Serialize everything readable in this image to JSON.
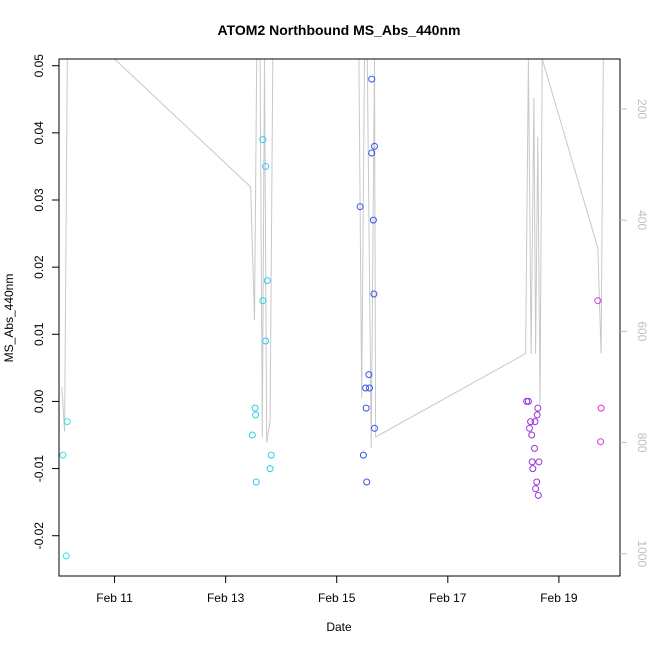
{
  "chart_data": {
    "type": "scatter",
    "title": "ATOM2 Northbound MS_Abs_440nm",
    "xlabel": "Date",
    "ylabel": "MS_Abs_440nm",
    "ylim": [
      -0.026,
      0.051
    ],
    "xlim": [
      10.0,
      20.1
    ],
    "x_unit": "days of February (day-of-month, fractional)",
    "x_ticks": [
      {
        "value": 11,
        "label": "Feb 11"
      },
      {
        "value": 13,
        "label": "Feb 13"
      },
      {
        "value": 15,
        "label": "Feb 15"
      },
      {
        "value": 17,
        "label": "Feb 17"
      },
      {
        "value": 19,
        "label": "Feb 19"
      }
    ],
    "y_ticks": [
      {
        "value": -0.02,
        "label": "-0.02"
      },
      {
        "value": -0.01,
        "label": "-0.01"
      },
      {
        "value": 0.0,
        "label": "0.00"
      },
      {
        "value": 0.01,
        "label": "0.01"
      },
      {
        "value": 0.02,
        "label": "0.02"
      },
      {
        "value": 0.03,
        "label": "0.03"
      },
      {
        "value": 0.04,
        "label": "0.04"
      },
      {
        "value": 0.05,
        "label": "0.05"
      }
    ],
    "secondary_axis": {
      "side": "right",
      "color": "#bfbfbf",
      "range": [
        1040,
        110
      ],
      "ticks": [
        {
          "value": 200,
          "label": "200"
        },
        {
          "value": 400,
          "label": "400"
        },
        {
          "value": 600,
          "label": "600"
        },
        {
          "value": 800,
          "label": "800"
        },
        {
          "value": 1000,
          "label": "1000"
        }
      ]
    },
    "series": [
      {
        "name": "cyan",
        "color": "#33e6e6",
        "points": [
          {
            "x": 10.07,
            "y": -0.008
          },
          {
            "x": 10.15,
            "y": -0.003
          },
          {
            "x": 10.13,
            "y": -0.023
          }
        ]
      },
      {
        "name": "light-blue",
        "color": "#33ccee",
        "points": [
          {
            "x": 13.48,
            "y": -0.005
          },
          {
            "x": 13.53,
            "y": -0.001
          },
          {
            "x": 13.54,
            "y": -0.002
          },
          {
            "x": 13.55,
            "y": -0.012
          },
          {
            "x": 13.67,
            "y": 0.039
          },
          {
            "x": 13.67,
            "y": 0.015
          },
          {
            "x": 13.72,
            "y": 0.035
          },
          {
            "x": 13.72,
            "y": 0.009
          },
          {
            "x": 13.75,
            "y": 0.018
          },
          {
            "x": 13.82,
            "y": -0.008
          },
          {
            "x": 13.8,
            "y": -0.01
          }
        ]
      },
      {
        "name": "blue",
        "color": "#3355ee",
        "points": [
          {
            "x": 15.42,
            "y": 0.029
          },
          {
            "x": 15.48,
            "y": -0.008
          },
          {
            "x": 15.52,
            "y": 0.002
          },
          {
            "x": 15.53,
            "y": -0.001
          },
          {
            "x": 15.54,
            "y": -0.012
          },
          {
            "x": 15.58,
            "y": 0.004
          },
          {
            "x": 15.59,
            "y": 0.002
          },
          {
            "x": 15.63,
            "y": 0.048
          },
          {
            "x": 15.63,
            "y": 0.037
          },
          {
            "x": 15.66,
            "y": 0.027
          },
          {
            "x": 15.68,
            "y": 0.038
          },
          {
            "x": 15.67,
            "y": 0.016
          },
          {
            "x": 15.68,
            "y": -0.004
          }
        ]
      },
      {
        "name": "purple",
        "color": "#9933dd",
        "points": [
          {
            "x": 18.42,
            "y": 0.0
          },
          {
            "x": 18.45,
            "y": 0.0
          },
          {
            "x": 18.47,
            "y": -0.004
          },
          {
            "x": 18.49,
            "y": -0.003
          },
          {
            "x": 18.51,
            "y": -0.005
          },
          {
            "x": 18.52,
            "y": -0.009
          },
          {
            "x": 18.53,
            "y": -0.01
          },
          {
            "x": 18.56,
            "y": -0.007
          },
          {
            "x": 18.57,
            "y": -0.003
          },
          {
            "x": 18.58,
            "y": -0.013
          },
          {
            "x": 18.6,
            "y": -0.012
          },
          {
            "x": 18.63,
            "y": -0.014
          },
          {
            "x": 18.61,
            "y": -0.002
          },
          {
            "x": 18.62,
            "y": -0.001
          },
          {
            "x": 18.64,
            "y": -0.009
          }
        ]
      },
      {
        "name": "magenta",
        "color": "#dd33dd",
        "points": [
          {
            "x": 19.7,
            "y": 0.015
          },
          {
            "x": 19.76,
            "y": -0.001
          },
          {
            "x": 19.75,
            "y": -0.006
          }
        ]
      }
    ],
    "depth_trace": {
      "name": "secondary trace",
      "color": "#c8c8c8",
      "axis": "right",
      "points": [
        [
          10.05,
          700
        ],
        [
          10.1,
          780
        ],
        [
          10.15,
          110
        ],
        [
          10.2,
          110
        ],
        [
          11.0,
          110
        ],
        [
          13.45,
          340
        ],
        [
          13.52,
          580
        ],
        [
          13.56,
          110
        ],
        [
          13.62,
          110
        ],
        [
          13.66,
          790
        ],
        [
          13.7,
          110
        ],
        [
          13.74,
          800
        ],
        [
          13.8,
          760
        ],
        [
          13.85,
          110
        ],
        [
          13.9,
          110
        ],
        [
          15.4,
          110
        ],
        [
          15.45,
          720
        ],
        [
          15.5,
          110
        ],
        [
          15.55,
          110
        ],
        [
          15.62,
          810
        ],
        [
          15.68,
          110
        ],
        [
          15.7,
          790
        ],
        [
          18.4,
          640
        ],
        [
          18.45,
          110
        ],
        [
          18.5,
          640
        ],
        [
          18.55,
          180
        ],
        [
          18.58,
          640
        ],
        [
          18.62,
          250
        ],
        [
          18.66,
          730
        ],
        [
          18.7,
          110
        ],
        [
          19.7,
          450
        ],
        [
          19.76,
          640
        ],
        [
          19.8,
          110
        ]
      ]
    }
  }
}
